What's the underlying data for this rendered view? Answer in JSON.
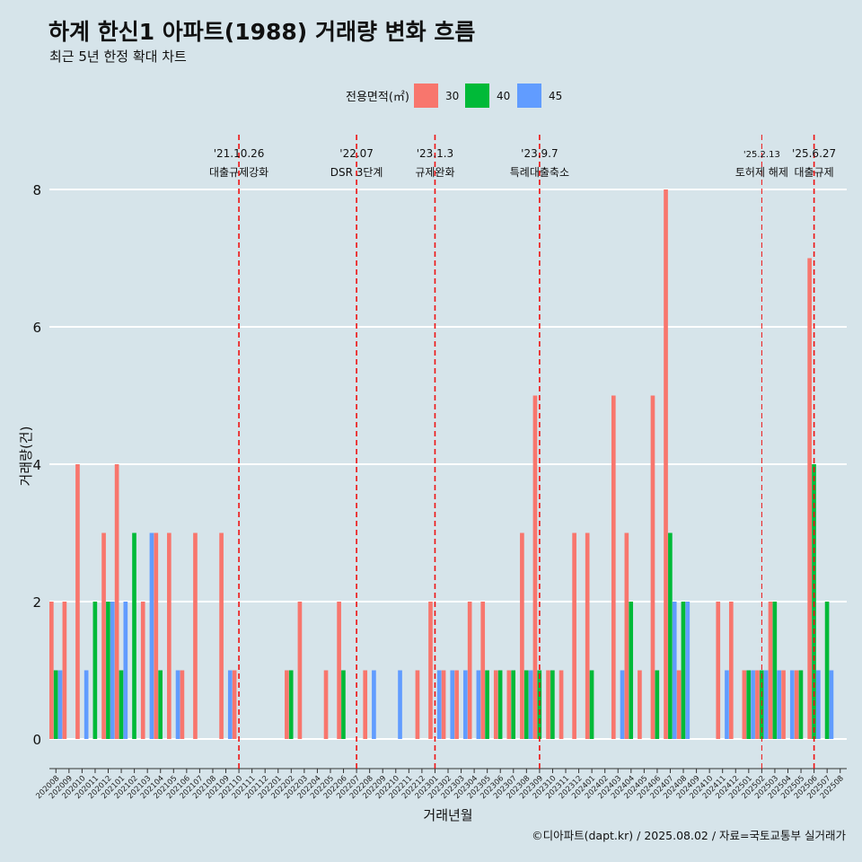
{
  "title": "하계 한신1 아파트(1988) 거래량 변화 흐름",
  "subtitle": "최근 5년 한정 확대 차트",
  "caption": "©디아파트(dapt.kr) / 2025.08.02 / 자료=국토교통부 실거래가",
  "chart_data": {
    "type": "bar",
    "xlabel": "거래년월",
    "ylabel": "거래량(건)",
    "ylim": [
      0,
      8
    ],
    "yticks": [
      0,
      2,
      4,
      6,
      8
    ],
    "grid": true,
    "legend": {
      "title": "전용면적(㎡)",
      "position": "top"
    },
    "colors": {
      "30": "#f8766d",
      "40": "#00ba38",
      "45": "#619cff"
    },
    "categories": [
      "202008",
      "202009",
      "202010",
      "202011",
      "202012",
      "202101",
      "202102",
      "202103",
      "202104",
      "202105",
      "202106",
      "202107",
      "202108",
      "202109",
      "202110",
      "202111",
      "202112",
      "202201",
      "202202",
      "202203",
      "202204",
      "202205",
      "202206",
      "202207",
      "202208",
      "202209",
      "202210",
      "202211",
      "202212",
      "202301",
      "202302",
      "202303",
      "202304",
      "202305",
      "202306",
      "202307",
      "202308",
      "202309",
      "202310",
      "202311",
      "202312",
      "202401",
      "202402",
      "202403",
      "202404",
      "202405",
      "202406",
      "202407",
      "202408",
      "202409",
      "202410",
      "202411",
      "202412",
      "202501",
      "202502",
      "202503",
      "202504",
      "202505",
      "202506",
      "202507",
      "202508"
    ],
    "series": [
      {
        "name": "30",
        "values": [
          2,
          2,
          4,
          0,
          3,
          4,
          0,
          2,
          3,
          3,
          1,
          3,
          0,
          3,
          1,
          0,
          0,
          0,
          1,
          2,
          0,
          1,
          2,
          0,
          1,
          0,
          0,
          0,
          1,
          2,
          1,
          1,
          2,
          2,
          1,
          1,
          3,
          5,
          1,
          1,
          3,
          3,
          0,
          5,
          3,
          1,
          5,
          8,
          1,
          0,
          0,
          2,
          2,
          1,
          1,
          2,
          1,
          1,
          7,
          0,
          0
        ]
      },
      {
        "name": "40",
        "values": [
          1,
          0,
          0,
          2,
          2,
          1,
          3,
          0,
          1,
          0,
          0,
          0,
          0,
          0,
          0,
          0,
          0,
          0,
          1,
          0,
          0,
          0,
          1,
          0,
          0,
          0,
          0,
          0,
          0,
          0,
          0,
          0,
          0,
          1,
          1,
          1,
          1,
          1,
          1,
          0,
          0,
          1,
          0,
          0,
          2,
          0,
          1,
          3,
          2,
          0,
          0,
          0,
          0,
          1,
          1,
          2,
          0,
          1,
          4,
          2,
          0
        ]
      },
      {
        "name": "45",
        "values": [
          1,
          0,
          1,
          0,
          2,
          2,
          0,
          3,
          0,
          1,
          0,
          0,
          0,
          1,
          0,
          0,
          0,
          0,
          0,
          0,
          0,
          0,
          0,
          0,
          1,
          0,
          1,
          0,
          0,
          1,
          1,
          1,
          1,
          0,
          0,
          0,
          1,
          0,
          0,
          0,
          0,
          0,
          0,
          1,
          0,
          0,
          0,
          2,
          2,
          0,
          0,
          1,
          0,
          1,
          1,
          1,
          1,
          0,
          1,
          1,
          0
        ]
      }
    ],
    "annotations": [
      {
        "x": "202110",
        "date": "'21.10.26",
        "label": "대출규제강화"
      },
      {
        "x": "202207",
        "date": "'22.07",
        "label": "DSR 3단계"
      },
      {
        "x": "202301",
        "date": "'23.1.3",
        "label": "규제완화"
      },
      {
        "x": "202309",
        "date": "'23.9.7",
        "label": "특례대출축소"
      },
      {
        "x": "202502",
        "date": "'25.2.13",
        "label": "토허제 해제"
      },
      {
        "x": "202506",
        "date": "'25.6.27",
        "label": "대출규제"
      }
    ]
  }
}
